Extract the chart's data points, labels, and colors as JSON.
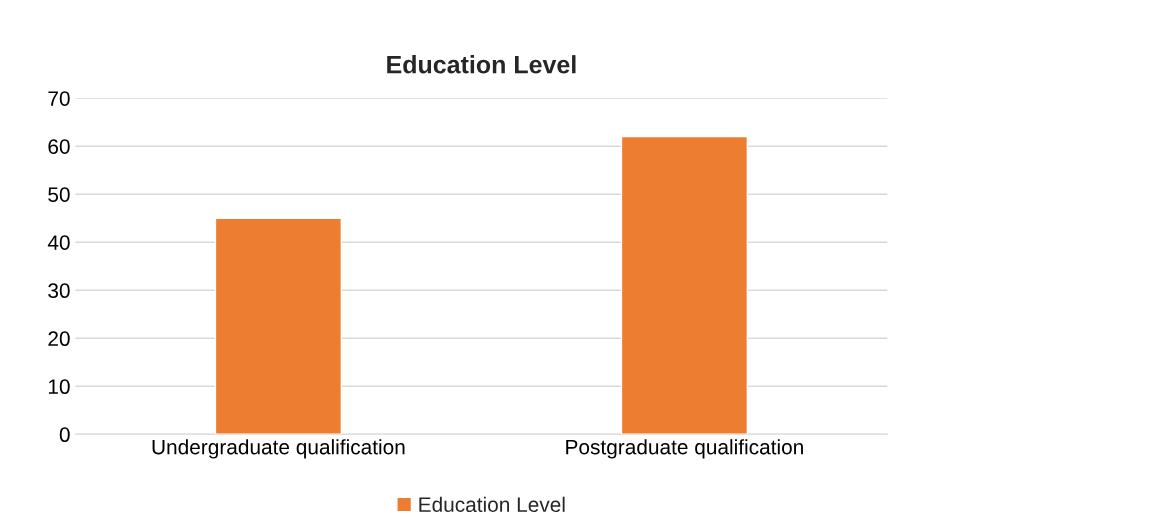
{
  "chart_data": {
    "type": "bar",
    "title": "Education Level",
    "categories": [
      "Undergraduate qualification",
      "Postgraduate qualification"
    ],
    "series": [
      {
        "name": "Education Level",
        "color": "#ed7d31",
        "values": [
          45,
          62
        ]
      }
    ],
    "ylim": [
      0,
      70
    ],
    "yticks": [
      0,
      10,
      20,
      30,
      40,
      50,
      60,
      70
    ],
    "grid": "y",
    "legend": "bottom"
  }
}
